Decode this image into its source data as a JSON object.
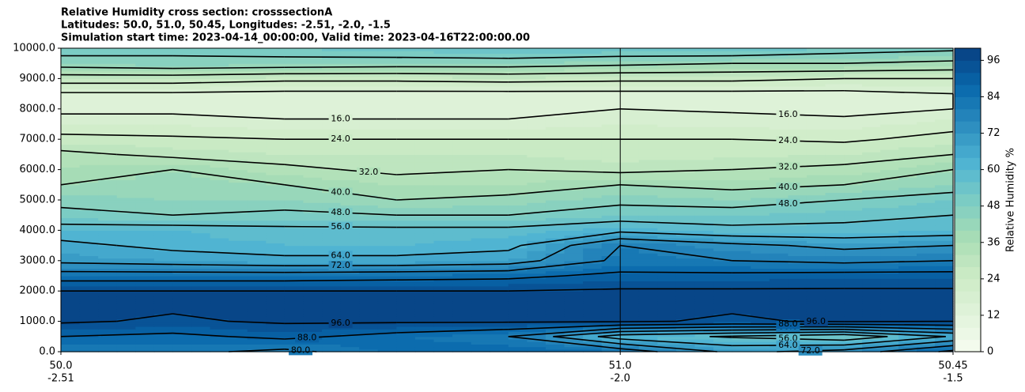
{
  "chart_data": {
    "type": "contour",
    "title": [
      "Relative Humidity cross section: crosssectionA",
      "Latitudes: 50.0, 51.0, 50.45, Longitudes: -2.51, -2.0, -1.5",
      "Simulation start time: 2023-04-14_00:00:00, Valid time: 2023-04-16T22:00:00.00"
    ],
    "x": [
      0,
      0.2,
      0.4,
      0.6,
      0.8,
      1.0,
      1.2,
      1.4,
      1.595
    ],
    "y": [
      0,
      500,
      1000,
      1500,
      2000,
      2500,
      3000,
      3500,
      4000,
      4500,
      5000,
      5500,
      6000,
      6500,
      7000,
      7500,
      8000,
      8500,
      9000,
      9500,
      10000
    ],
    "z": [
      [
        80,
        82,
        78,
        85,
        88,
        85,
        70,
        75,
        90
      ],
      [
        88,
        86,
        90,
        85,
        80,
        60,
        55,
        50,
        65
      ],
      [
        97,
        95,
        97,
        97,
        97,
        97,
        95,
        97,
        96
      ],
      [
        97,
        97,
        97,
        97,
        97,
        97,
        97,
        97,
        97
      ],
      [
        96,
        96,
        96,
        96,
        96,
        97,
        97,
        97,
        97
      ],
      [
        84,
        84,
        84,
        85,
        86,
        90,
        90,
        91,
        91
      ],
      [
        70,
        68,
        66,
        66,
        68,
        82,
        80,
        78,
        80
      ],
      [
        66,
        62,
        60,
        60,
        62,
        80,
        74,
        70,
        72
      ],
      [
        60,
        60,
        58,
        58,
        58,
        62,
        58,
        58,
        60
      ],
      [
        50,
        48,
        50,
        48,
        48,
        52,
        52,
        54,
        56
      ],
      [
        46,
        44,
        44,
        40,
        42,
        46,
        44,
        48,
        52
      ],
      [
        40,
        42,
        40,
        36,
        36,
        40,
        38,
        40,
        44
      ],
      [
        36,
        40,
        34,
        30,
        32,
        30,
        32,
        34,
        40
      ],
      [
        34,
        30,
        28,
        28,
        28,
        26,
        27,
        28,
        32
      ],
      [
        26,
        25,
        24,
        24,
        24,
        24,
        24,
        23,
        26
      ],
      [
        20,
        20,
        18,
        18,
        18,
        20,
        19,
        18,
        22
      ],
      [
        14,
        14,
        12,
        12,
        12,
        16,
        15,
        14,
        16
      ],
      [
        15,
        15,
        14,
        14,
        14,
        14,
        14,
        14,
        16
      ],
      [
        28,
        28,
        26,
        26,
        27,
        26,
        26,
        24,
        24
      ],
      [
        44,
        46,
        45,
        44,
        44,
        42,
        40,
        40,
        38
      ],
      [
        52,
        50,
        52,
        54,
        56,
        55,
        56,
        52,
        50
      ]
    ],
    "xlim": [
      0,
      1.595
    ],
    "xticks": [
      {
        "value": 0,
        "label": "50.0",
        "sublabel": "-2.51"
      },
      {
        "value": 1,
        "label": "51.0",
        "sublabel": "-2.0"
      },
      {
        "value": 1.595,
        "label": "50.45",
        "sublabel": "-1.5"
      }
    ],
    "ylim": [
      0,
      10000
    ],
    "yticks": [
      {
        "value": 0,
        "label": "0.0"
      },
      {
        "value": 1000,
        "label": "1000.0"
      },
      {
        "value": 2000,
        "label": "2000.0"
      },
      {
        "value": 3000,
        "label": "3000.0"
      },
      {
        "value": 4000,
        "label": "4000.0"
      },
      {
        "value": 5000,
        "label": "5000.0"
      },
      {
        "value": 6000,
        "label": "6000.0"
      },
      {
        "value": 7000,
        "label": "7000.0"
      },
      {
        "value": 8000,
        "label": "8000.0"
      },
      {
        "value": 9000,
        "label": "9000.0"
      },
      {
        "value": 10000,
        "label": "10000.0"
      }
    ],
    "levels": [
      0,
      4,
      8,
      12,
      16,
      20,
      24,
      28,
      32,
      36,
      40,
      44,
      48,
      52,
      56,
      60,
      64,
      68,
      72,
      76,
      80,
      84,
      88,
      92,
      96,
      100
    ],
    "colormap": [
      "#f7fcf0",
      "#e0f3db",
      "#ccebc5",
      "#a8ddb5",
      "#7bccc4",
      "#4eb3d3",
      "#2b8cbe",
      "#0868ac",
      "#084081"
    ],
    "contour_levels": [
      {
        "value": 16,
        "label": "16.0"
      },
      {
        "value": 24,
        "label": "24.0"
      },
      {
        "value": 32,
        "label": "32.0"
      },
      {
        "value": 40,
        "label": "40.0"
      },
      {
        "value": 48,
        "label": "48.0"
      },
      {
        "value": 56,
        "label": "56.0"
      },
      {
        "value": 64,
        "label": "64.0"
      },
      {
        "value": 72,
        "label": "72.0"
      },
      {
        "value": 80,
        "label": "80.0"
      },
      {
        "value": 88,
        "label": "88.0"
      },
      {
        "value": 96,
        "label": "96.0"
      }
    ],
    "clim": [
      0,
      100
    ],
    "cticks": [
      0,
      12,
      24,
      36,
      48,
      60,
      72,
      84,
      96
    ],
    "colorbar_label": "Relative Humidity %"
  }
}
